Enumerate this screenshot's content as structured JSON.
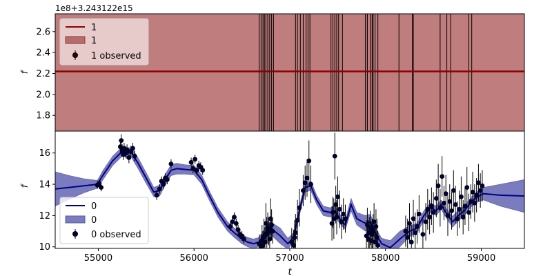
{
  "chart_data": [
    {
      "type": "line",
      "offset_label": "1e8+3.243122e15",
      "ylabel": "f",
      "xlim": [
        54550,
        59450
      ],
      "ylim": [
        1.65,
        2.77
      ],
      "yticks": [
        1.8,
        2.0,
        2.2,
        2.4,
        2.6
      ],
      "ytick_labels": [
        "1.8",
        "2.0",
        "2.2",
        "2.4",
        "2.6"
      ],
      "band": [
        1.65,
        2.77
      ],
      "mean": 2.22,
      "observed_t": [
        56680,
        56700,
        56720,
        56735,
        56750,
        56770,
        56790,
        56810,
        56830,
        57060,
        57080,
        57110,
        57140,
        57170,
        57190,
        57210,
        57430,
        57450,
        57470,
        57490,
        57510,
        57550,
        57790,
        57810,
        57840,
        57860,
        57870,
        57890,
        57920,
        58140,
        58280,
        58290,
        58570,
        58640,
        58680,
        58870,
        58900
      ],
      "series_colors": {
        "line": "#8b0000",
        "band": "#b86b6b",
        "marker": "#3a0000"
      },
      "legend": {
        "placement": "upper-left",
        "line_label": "1",
        "band_label": "1",
        "observed_label": "1 observed"
      }
    },
    {
      "type": "line",
      "xlabel": "t",
      "ylabel": "f",
      "xlim": [
        54550,
        59450
      ],
      "ylim": [
        9.9,
        17.4
      ],
      "xticks": [
        55000,
        56000,
        57000,
        58000,
        59000
      ],
      "xtick_labels": [
        "55000",
        "56000",
        "57000",
        "58000",
        "59000"
      ],
      "yticks": [
        10,
        12,
        14,
        16
      ],
      "ytick_labels": [
        "10",
        "12",
        "14",
        "16"
      ],
      "mean_curve": {
        "t": [
          54550,
          54700,
          54850,
          54990,
          55050,
          55150,
          55250,
          55350,
          55420,
          55500,
          55580,
          55640,
          55700,
          55760,
          55820,
          55900,
          56000,
          56080,
          56150,
          56250,
          56350,
          56420,
          56500,
          56560,
          56620,
          56680,
          56740,
          56800,
          56900,
          56980,
          57040,
          57100,
          57160,
          57220,
          57280,
          57350,
          57420,
          57470,
          57520,
          57580,
          57640,
          57700,
          57790,
          57840,
          57900,
          57960,
          58050,
          58150,
          58250,
          58330,
          58400,
          58470,
          58530,
          58580,
          58640,
          58700,
          58760,
          58820,
          58900,
          58960,
          59020,
          59200,
          59450
        ],
        "f": [
          13.7,
          13.8,
          13.9,
          14.0,
          14.6,
          15.5,
          16.1,
          16.0,
          15.3,
          14.4,
          13.5,
          13.6,
          14.3,
          14.9,
          15.0,
          14.95,
          14.9,
          14.3,
          13.4,
          12.2,
          11.3,
          10.9,
          10.5,
          10.3,
          10.2,
          10.3,
          10.9,
          11.2,
          10.7,
          10.2,
          10.6,
          12.3,
          13.8,
          13.9,
          13.0,
          12.3,
          12.2,
          12.3,
          11.8,
          11.4,
          12.7,
          11.8,
          11.5,
          11.6,
          10.8,
          10.2,
          9.95,
          10.5,
          11.0,
          11.2,
          12.0,
          12.5,
          12.3,
          12.7,
          12.1,
          11.6,
          12.0,
          12.3,
          12.9,
          13.2,
          13.4,
          13.3,
          13.25
        ]
      },
      "band_halfwidth": [
        1.1,
        0.75,
        0.45,
        0.25,
        0.3,
        0.3,
        0.3,
        0.32,
        0.35,
        0.35,
        0.3,
        0.35,
        0.35,
        0.35,
        0.35,
        0.3,
        0.3,
        0.3,
        0.3,
        0.3,
        0.3,
        0.3,
        0.3,
        0.3,
        0.3,
        0.3,
        0.3,
        0.4,
        0.5,
        0.35,
        0.3,
        0.3,
        0.3,
        0.3,
        0.3,
        0.3,
        0.3,
        0.3,
        0.3,
        0.3,
        0.4,
        0.4,
        0.5,
        0.5,
        0.35,
        0.35,
        0.45,
        0.5,
        0.35,
        0.3,
        0.3,
        0.3,
        0.3,
        0.3,
        0.3,
        0.35,
        0.35,
        0.3,
        0.3,
        0.35,
        0.4,
        0.7,
        1.05
      ],
      "observed": {
        "t": [
          54990,
          55010,
          55030,
          55230,
          55240,
          55250,
          55260,
          55270,
          55280,
          55290,
          55300,
          55320,
          55340,
          55360,
          55380,
          55610,
          55640,
          55660,
          55680,
          55700,
          55720,
          55760,
          55970,
          55990,
          56010,
          56030,
          56050,
          56070,
          56090,
          56380,
          56400,
          56420,
          56440,
          56460,
          56480,
          56500,
          56520,
          56680,
          56700,
          56710,
          56720,
          56730,
          56740,
          56750,
          56760,
          56770,
          56780,
          56790,
          56800,
          56810,
          56820,
          57020,
          57040,
          57050,
          57060,
          57080,
          57100,
          57140,
          57160,
          57180,
          57200,
          57220,
          57440,
          57450,
          57460,
          57470,
          57480,
          57490,
          57500,
          57520,
          57540,
          57560,
          57580,
          57800,
          57810,
          57820,
          57830,
          57840,
          57850,
          57860,
          57870,
          57880,
          57890,
          57900,
          57910,
          57920,
          58210,
          58230,
          58250,
          58270,
          58290,
          58310,
          58330,
          58350,
          58390,
          58420,
          58440,
          58460,
          58480,
          58500,
          58530,
          58550,
          58570,
          58590,
          58610,
          58630,
          58650,
          58670,
          58690,
          58710,
          58730,
          58750,
          58770,
          58790,
          58810,
          58830,
          58850,
          58870,
          58890,
          58910,
          58930,
          58950,
          58970,
          58990,
          59010
        ],
        "f": [
          13.95,
          14.05,
          13.8,
          16.4,
          16.8,
          16.2,
          15.9,
          16.3,
          16.1,
          16.0,
          16.2,
          15.7,
          16.1,
          16.3,
          15.8,
          13.3,
          13.7,
          14.2,
          14.0,
          14.4,
          14.3,
          15.3,
          15.4,
          15.0,
          15.6,
          14.9,
          15.2,
          15.1,
          14.9,
          11.3,
          11.6,
          11.9,
          11.5,
          11.1,
          10.8,
          10.7,
          10.5,
          10.2,
          10.0,
          10.4,
          10.1,
          10.6,
          10.3,
          11.5,
          10.8,
          11.2,
          11.0,
          10.5,
          11.8,
          11.4,
          11.0,
          10.3,
          10.1,
          10.6,
          10.9,
          11.7,
          12.5,
          13.6,
          14.1,
          14.4,
          15.5,
          14.0,
          11.5,
          12.2,
          11.8,
          15.8,
          12.7,
          11.9,
          13.2,
          12.4,
          11.6,
          12.1,
          11.8,
          10.7,
          11.4,
          10.5,
          10.9,
          11.2,
          10.4,
          10.8,
          11.0,
          11.6,
          10.3,
          11.3,
          10.6,
          10.1,
          11.0,
          10.6,
          11.5,
          10.3,
          11.8,
          10.9,
          11.3,
          12.1,
          10.8,
          11.6,
          12.4,
          11.9,
          12.6,
          12.2,
          13.1,
          13.9,
          12.5,
          14.5,
          12.8,
          13.4,
          12.0,
          12.9,
          12.3,
          13.6,
          12.7,
          11.8,
          12.4,
          13.2,
          11.9,
          12.6,
          13.8,
          12.2,
          12.9,
          13.5,
          12.8,
          13.3,
          14.1,
          13.6,
          13.9
        ],
        "err": [
          0.25,
          0.25,
          0.25,
          0.4,
          0.4,
          0.35,
          0.35,
          0.35,
          0.35,
          0.35,
          0.35,
          0.35,
          0.35,
          0.35,
          0.35,
          0.3,
          0.3,
          0.3,
          0.3,
          0.3,
          0.3,
          0.3,
          0.3,
          0.3,
          0.3,
          0.3,
          0.3,
          0.3,
          0.3,
          0.3,
          0.3,
          0.3,
          0.3,
          0.3,
          0.3,
          0.3,
          0.3,
          0.6,
          0.8,
          1.0,
          0.9,
          1.2,
          1.0,
          1.3,
          1.1,
          1.0,
          0.9,
          1.1,
          1.3,
          1.0,
          0.8,
          0.9,
          1.0,
          1.1,
          1.2,
          1.3,
          1.2,
          1.0,
          1.1,
          1.2,
          1.3,
          1.2,
          1.1,
          1.0,
          1.3,
          1.5,
          1.2,
          1.1,
          1.3,
          1.2,
          1.1,
          1.0,
          0.9,
          1.0,
          1.1,
          1.2,
          1.0,
          1.1,
          1.2,
          1.0,
          1.1,
          1.2,
          1.0,
          1.1,
          1.2,
          0.9,
          1.0,
          1.2,
          1.3,
          1.1,
          1.2,
          1.3,
          1.1,
          1.2,
          1.0,
          1.2,
          1.3,
          1.1,
          1.2,
          1.3,
          1.2,
          1.4,
          1.2,
          1.3,
          1.1,
          1.2,
          1.3,
          1.1,
          1.2,
          1.3,
          1.2,
          1.1,
          1.2,
          1.3,
          1.1,
          1.2,
          1.3,
          1.2,
          1.1,
          1.3,
          1.2,
          1.1,
          1.2,
          1.1,
          1.0
        ]
      },
      "series_colors": {
        "line": "#000080",
        "band": "#7b7bc0",
        "marker": "#000040"
      },
      "legend": {
        "placement": "lower-left",
        "line_label": "0",
        "band_label": "0",
        "observed_label": "0 observed"
      }
    }
  ]
}
